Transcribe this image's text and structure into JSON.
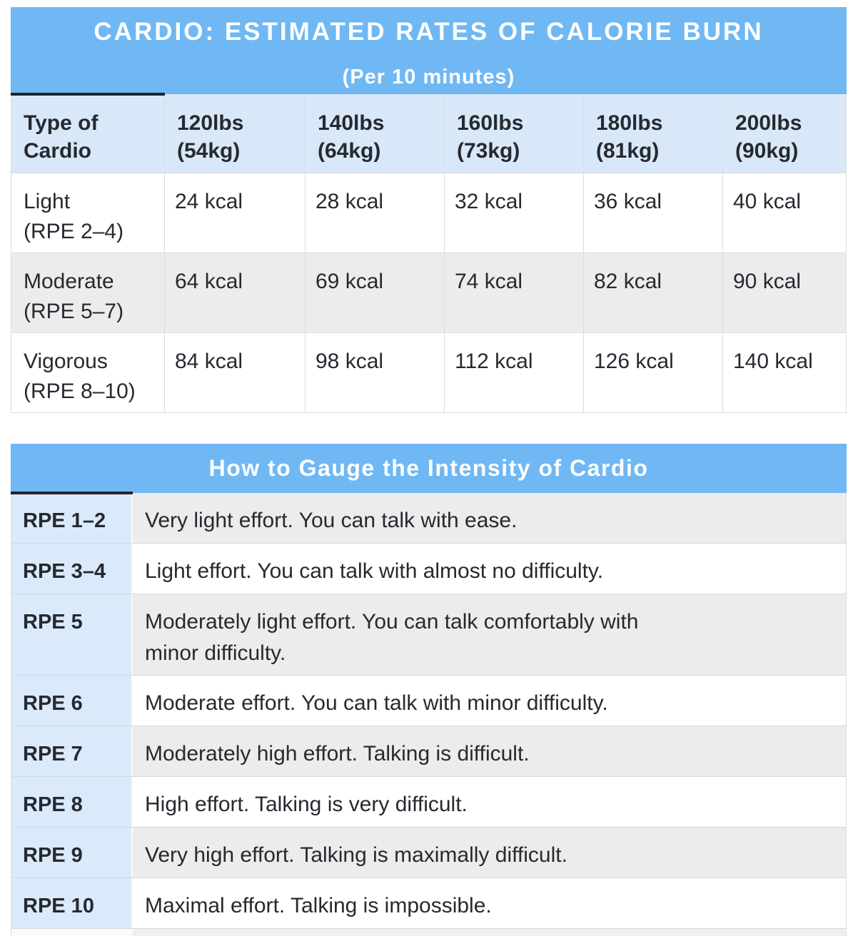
{
  "colors": {
    "banner_blue": "#6fb8f3",
    "header_row_blue": "#d9e8f8",
    "rpe_column_blue": "#dbeafa",
    "alt_row_gray": "#ececec",
    "accent_bar_dark": "#1e242b",
    "text_dark": "#26292f",
    "banner_text": "#ffffff"
  },
  "chart_data": [
    {
      "type": "table",
      "title": "CARDIO: ESTIMATED RATES OF CALORIE BURN",
      "subtitle": "(Per 10 minutes)",
      "columns": [
        "Type of\nCardio",
        "120lbs\n(54kg)",
        "140lbs\n(64kg)",
        "160lbs\n(73kg)",
        "180lbs\n(81kg)",
        "200lbs\n(90kg)"
      ],
      "rows": [
        {
          "label": "Light\n(RPE 2–4)",
          "values": [
            "24 kcal",
            "28 kcal",
            "32 kcal",
            "36 kcal",
            "40 kcal"
          ]
        },
        {
          "label": "Moderate\n(RPE 5–7)",
          "values": [
            "64 kcal",
            "69 kcal",
            "74 kcal",
            "82 kcal",
            "90 kcal"
          ]
        },
        {
          "label": "Vigorous\n(RPE 8–10)",
          "values": [
            "84 kcal",
            "98 kcal",
            "112 kcal",
            "126 kcal",
            "140 kcal"
          ]
        }
      ]
    },
    {
      "type": "table",
      "title": "How to Gauge the Intensity of Cardio",
      "rows": [
        {
          "rpe": "RPE 1–2",
          "description": "Very light effort. You can talk with ease."
        },
        {
          "rpe": "RPE 3–4",
          "description": "Light effort. You can talk with almost no difficulty."
        },
        {
          "rpe": "RPE 5",
          "description": "Moderately light effort. You can talk comfortably with\nminor difficulty."
        },
        {
          "rpe": "RPE 6",
          "description": "Moderate effort. You can talk with minor difficulty."
        },
        {
          "rpe": "RPE 7",
          "description": "Moderately high effort. Talking is difficult."
        },
        {
          "rpe": "RPE 8",
          "description": "High effort. Talking is very difficult."
        },
        {
          "rpe": "RPE 9",
          "description": "Very high effort. Talking is maximally difficult."
        },
        {
          "rpe": "RPE 10",
          "description": "Maximal effort. Talking is impossible."
        }
      ]
    }
  ]
}
